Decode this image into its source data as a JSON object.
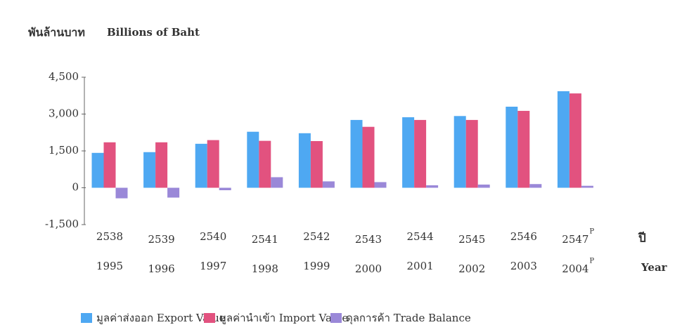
{
  "chart_data": {
    "type": "bar",
    "title": "พันล้านบาท",
    "subtitle": "Billions of Baht",
    "x_label_th": "ปี",
    "x_label_en": "Year",
    "categories": [
      "2538",
      "2539",
      "2540",
      "2541",
      "2542",
      "2543",
      "2544",
      "2545",
      "2546",
      "2547"
    ],
    "categories_en": [
      "1995",
      "1996",
      "1997",
      "1998",
      "1999",
      "2000",
      "2001",
      "2002",
      "2003",
      "2004"
    ],
    "preliminary_mark": "P",
    "series": [
      {
        "name": "มูลค่าส่งออก Export Value",
        "color": "#4ea8f2",
        "values": [
          1420,
          1450,
          1790,
          2280,
          2220,
          2760,
          2870,
          2920,
          3300,
          3930
        ]
      },
      {
        "name": "มูลค่านำเข้า Import Value",
        "color": "#e2527f",
        "values": [
          1850,
          1850,
          1940,
          1910,
          1900,
          2480,
          2760,
          2760,
          3130,
          3840
        ]
      },
      {
        "name": "ดุลการค้า Trade Balance",
        "color": "#9a88d8",
        "values": [
          -430,
          -400,
          -100,
          430,
          260,
          230,
          100,
          130,
          150,
          80
        ]
      }
    ],
    "ylim": [
      -1500,
      4500
    ],
    "yticks": [
      {
        "value": -1500,
        "label": "-1,500"
      },
      0,
      {
        "value": 1500,
        "label": "1,500"
      },
      {
        "value": 3000,
        "label": "3,000"
      },
      {
        "value": 4500,
        "label": "4,500"
      }
    ],
    "grid": false
  }
}
